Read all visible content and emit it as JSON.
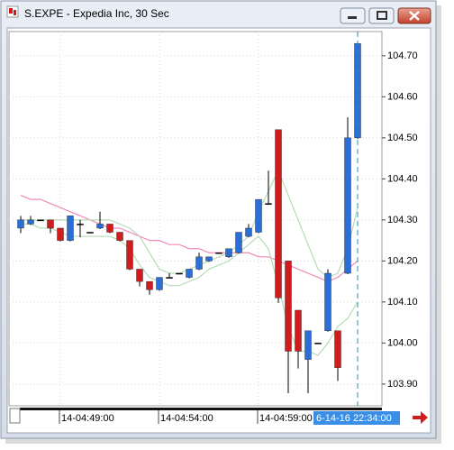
{
  "window_title": "S.EXPE - Expedia Inc, 30 Sec",
  "chart_data": {
    "type": "candlestick",
    "categories": [
      null,
      null,
      null,
      null,
      "14-04:49:00",
      null,
      null,
      null,
      null,
      null,
      null,
      null,
      null,
      null,
      "14-04:54:00",
      null,
      null,
      null,
      null,
      null,
      null,
      null,
      null,
      null,
      "14-04:59:00",
      null,
      null,
      null,
      null,
      null,
      null,
      null,
      null,
      null,
      null
    ],
    "open": [
      104.28,
      104.29,
      104.3,
      104.3,
      104.28,
      104.25,
      104.29,
      104.27,
      104.28,
      104.29,
      104.27,
      104.25,
      104.18,
      104.15,
      104.13,
      104.16,
      104.17,
      104.16,
      104.18,
      104.2,
      104.22,
      104.21,
      104.22,
      104.26,
      104.27,
      104.34,
      104.52,
      104.2,
      104.08,
      103.96,
      104.0,
      104.03,
      104.03,
      104.17,
      104.5
    ],
    "high": [
      104.31,
      104.31,
      104.3,
      104.3,
      104.28,
      104.31,
      104.3,
      104.27,
      104.32,
      104.29,
      104.27,
      104.25,
      104.18,
      104.15,
      104.16,
      104.17,
      104.17,
      104.18,
      104.22,
      104.21,
      104.22,
      104.23,
      104.27,
      104.29,
      104.35,
      104.42,
      104.52,
      104.2,
      104.08,
      104.03,
      104.0,
      104.18,
      104.03,
      104.55,
      104.73
    ],
    "low": [
      104.27,
      104.29,
      104.3,
      104.27,
      104.25,
      104.25,
      104.26,
      104.27,
      104.28,
      104.27,
      104.25,
      104.18,
      104.14,
      104.12,
      104.13,
      104.16,
      104.17,
      104.16,
      104.18,
      104.2,
      104.22,
      104.21,
      104.22,
      104.26,
      104.27,
      104.34,
      104.1,
      103.88,
      103.94,
      103.88,
      104.0,
      104.03,
      103.91,
      104.17,
      104.5
    ],
    "close": [
      104.3,
      104.3,
      104.3,
      104.28,
      104.25,
      104.31,
      104.29,
      104.27,
      104.29,
      104.27,
      104.25,
      104.18,
      104.15,
      104.13,
      104.16,
      104.16,
      104.17,
      104.18,
      104.21,
      104.21,
      104.22,
      104.23,
      104.27,
      104.28,
      104.35,
      104.34,
      104.11,
      103.98,
      103.98,
      104.03,
      104.0,
      104.17,
      103.94,
      104.5,
      104.73
    ],
    "up_color": "#2a6fd8",
    "down_color": "#d01c1c",
    "overlays": [
      {
        "color": "#f08ab8",
        "values": [
          104.36,
          104.35,
          104.35,
          104.34,
          104.33,
          104.32,
          104.31,
          104.3,
          104.29,
          104.28,
          104.28,
          104.27,
          104.26,
          104.25,
          104.25,
          104.24,
          104.24,
          104.23,
          104.23,
          104.22,
          104.22,
          104.22,
          104.22,
          104.22,
          104.21,
          104.21,
          104.2,
          104.19,
          104.18,
          104.17,
          104.16,
          104.15,
          104.16,
          104.18,
          104.2
        ]
      },
      {
        "color": "#b5dcb5",
        "values": [
          104.3,
          104.3,
          104.3,
          104.3,
          104.3,
          104.3,
          104.3,
          104.3,
          104.3,
          104.3,
          104.29,
          104.28,
          104.26,
          104.22,
          104.18,
          104.17,
          104.17,
          104.18,
          104.19,
          104.2,
          104.21,
          104.22,
          104.24,
          104.26,
          104.32,
          104.37,
          104.42,
          104.36,
          104.3,
          104.24,
          104.18,
          104.16,
          104.17,
          104.23,
          104.33
        ]
      },
      {
        "color": "#b5dcb5",
        "values": [
          104.29,
          104.29,
          104.28,
          104.28,
          104.27,
          104.26,
          104.26,
          104.26,
          104.26,
          104.26,
          104.25,
          104.23,
          104.19,
          104.16,
          104.15,
          104.14,
          104.14,
          104.15,
          104.16,
          104.18,
          104.19,
          104.2,
          104.22,
          104.24,
          104.26,
          104.23,
          104.14,
          104.04,
          103.98,
          103.98,
          103.97,
          104.0,
          104.04,
          104.06,
          104.1
        ]
      }
    ],
    "ylim": [
      103.847,
      104.759
    ],
    "yticks": [
      {
        "value": 103.9,
        "label": "103.90"
      },
      {
        "value": 104.0,
        "label": "104.00"
      },
      {
        "value": 104.1,
        "label": "104.10"
      },
      {
        "value": 104.2,
        "label": "104.20"
      },
      {
        "value": 104.3,
        "label": "104.30"
      },
      {
        "value": 104.4,
        "label": "104.40"
      },
      {
        "value": 104.5,
        "label": "104.50"
      },
      {
        "value": 104.6,
        "label": "104.60"
      },
      {
        "value": 104.7,
        "label": "104.70"
      }
    ],
    "grid": true,
    "cursor_label": "6-14-16 22:34:00",
    "cursor_color": "#2a8fa8"
  }
}
